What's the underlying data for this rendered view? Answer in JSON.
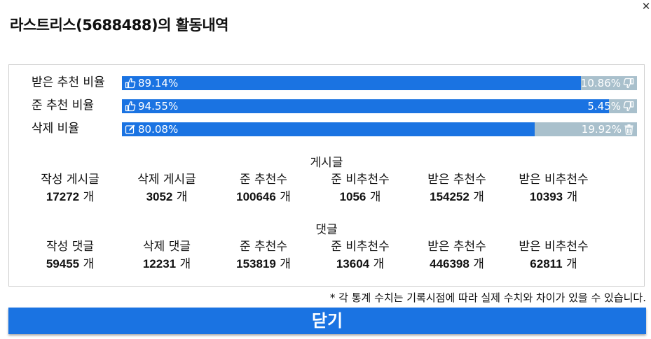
{
  "title": "라스트리스(5688488)의 활동내역",
  "close_icon": "close-icon",
  "bars": [
    {
      "label": "받은 추천 비율",
      "left": "89.14%",
      "right": "10.86%",
      "fill": 0.8914,
      "left_icon": "thumbs-up-icon",
      "right_icon": "thumbs-down-icon"
    },
    {
      "label": "준 추천 비율",
      "left": "94.55%",
      "right": "5.45%",
      "fill": 0.9455,
      "left_icon": "thumbs-up-icon",
      "right_icon": "thumbs-down-icon"
    },
    {
      "label": "삭제 비율",
      "left": "80.08%",
      "right": "19.92%",
      "fill": 0.8008,
      "left_icon": "edit-icon",
      "right_icon": "trash-icon"
    }
  ],
  "posts": {
    "title": "게시글",
    "stats": [
      {
        "label": "작성 게시글",
        "value": "17272",
        "unit": "개"
      },
      {
        "label": "삭제 게시글",
        "value": "3052",
        "unit": "개"
      },
      {
        "label": "준 추천수",
        "value": "100646",
        "unit": "개"
      },
      {
        "label": "준 비추천수",
        "value": "1056",
        "unit": "개"
      },
      {
        "label": "받은 추천수",
        "value": "154252",
        "unit": "개"
      },
      {
        "label": "받은 비추천수",
        "value": "10393",
        "unit": "개"
      }
    ]
  },
  "comments": {
    "title": "댓글",
    "stats": [
      {
        "label": "작성 댓글",
        "value": "59455",
        "unit": "개"
      },
      {
        "label": "삭제 댓글",
        "value": "12231",
        "unit": "개"
      },
      {
        "label": "준 추천수",
        "value": "153819",
        "unit": "개"
      },
      {
        "label": "준 비추천수",
        "value": "13604",
        "unit": "개"
      },
      {
        "label": "받은 추천수",
        "value": "446398",
        "unit": "개"
      },
      {
        "label": "받은 비추천수",
        "value": "62811",
        "unit": "개"
      }
    ]
  },
  "note": "* 각 통계 수치는 기록시점에 따라 실제 수치와 차이가 있을 수 있습니다.",
  "close_button_label": "닫기",
  "colors": {
    "accent": "#1a73e2",
    "track": "#a9c0cc"
  }
}
